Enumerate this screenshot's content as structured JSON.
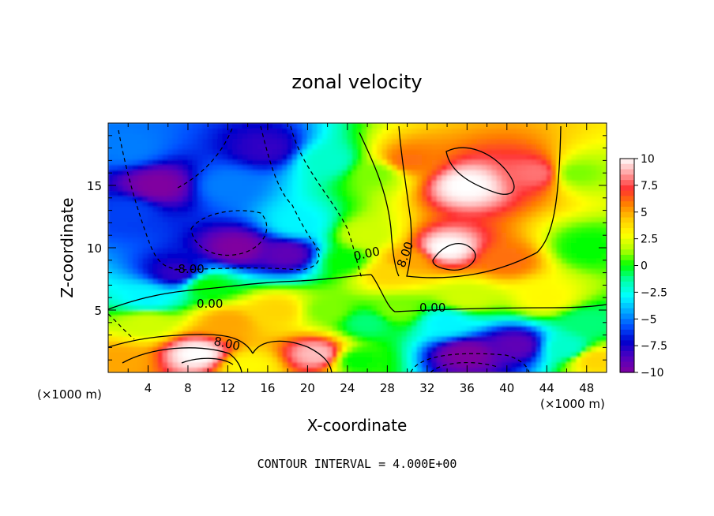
{
  "chart_data": {
    "type": "heatmap",
    "title": "zonal velocity",
    "xlabel": "X-coordinate",
    "ylabel": "Z-coordinate",
    "x_unit": "(×1000 m)",
    "z_unit": "(×1000 m)",
    "footer": "CONTOUR INTERVAL = 4.000E+00",
    "xlim": [
      0,
      50
    ],
    "ylim": [
      0,
      20
    ],
    "x_ticks": [
      "4",
      "8",
      "12",
      "16",
      "20",
      "24",
      "28",
      "32",
      "36",
      "40",
      "44",
      "48"
    ],
    "y_ticks": [
      "5",
      "10",
      "15"
    ],
    "colorbar": {
      "min": -10,
      "max": 10,
      "ticks": [
        "10",
        "7.5",
        "5",
        "2.5",
        "0",
        "−2.5",
        "−5",
        "−7.5",
        "−10"
      ],
      "colors": [
        "#ffffff",
        "#ffa0a0",
        "#ff3030",
        "#ff8000",
        "#ffcc00",
        "#ffff00",
        "#b0ff00",
        "#00ff00",
        "#00ffaa",
        "#00ffff",
        "#00aaff",
        "#0050ff",
        "#0000cc",
        "#5000c0",
        "#8000a0"
      ]
    },
    "contour_labels": [
      "8.00",
      "-8.00",
      "0.00",
      "0.00",
      "0.00",
      "8.00"
    ],
    "features": [
      {
        "x": 5,
        "z": 15,
        "velocity": -10
      },
      {
        "x": 13,
        "z": 10,
        "velocity": -10
      },
      {
        "x": 18,
        "z": 9.5,
        "velocity": -9
      },
      {
        "x": 36,
        "z": 15,
        "velocity": 10
      },
      {
        "x": 34,
        "z": 10,
        "velocity": 10
      },
      {
        "x": 9,
        "z": 1.5,
        "velocity": 10
      },
      {
        "x": 21,
        "z": 1.5,
        "velocity": 9
      },
      {
        "x": 36,
        "z": 1.5,
        "velocity": -10
      },
      {
        "x": 41,
        "z": 2.2,
        "velocity": -9
      },
      {
        "x": 2,
        "z": 13,
        "velocity": -6
      },
      {
        "x": 7,
        "z": 8,
        "velocity": -8
      },
      {
        "x": 4,
        "z": 6,
        "velocity": -3
      },
      {
        "x": 10,
        "z": 7,
        "velocity": 0
      },
      {
        "x": 4,
        "z": 4,
        "velocity": 2
      },
      {
        "x": 12,
        "z": 4,
        "velocity": 5
      },
      {
        "x": 17,
        "z": 5,
        "velocity": 4
      },
      {
        "x": 22,
        "z": 5,
        "velocity": 1
      },
      {
        "x": 26,
        "z": 4,
        "velocity": -1
      },
      {
        "x": 29,
        "z": 5,
        "velocity": 1
      },
      {
        "x": 24,
        "z": 9,
        "velocity": 0
      },
      {
        "x": 26,
        "z": 11,
        "velocity": 2
      },
      {
        "x": 27,
        "z": 16,
        "velocity": 1
      },
      {
        "x": 22,
        "z": 17,
        "velocity": -2
      },
      {
        "x": 19,
        "z": 12,
        "velocity": -3
      },
      {
        "x": 30,
        "z": 17,
        "velocity": 6
      },
      {
        "x": 30,
        "z": 9,
        "velocity": 5
      },
      {
        "x": 28,
        "z": 8,
        "velocity": 4
      },
      {
        "x": 43,
        "z": 16,
        "velocity": 8
      },
      {
        "x": 40,
        "z": 9,
        "velocity": 6
      },
      {
        "x": 36,
        "z": 6,
        "velocity": 2
      },
      {
        "x": 44,
        "z": 6,
        "velocity": 3
      },
      {
        "x": 47,
        "z": 16,
        "velocity": 1
      },
      {
        "x": 48,
        "z": 10,
        "velocity": 0
      },
      {
        "x": 48,
        "z": 4,
        "velocity": -1
      },
      {
        "x": 46,
        "z": 2,
        "velocity": -2
      },
      {
        "x": 49,
        "z": 1,
        "velocity": 4
      },
      {
        "x": 1,
        "z": 1,
        "velocity": 5
      },
      {
        "x": 14,
        "z": 0.5,
        "velocity": 3
      },
      {
        "x": 25,
        "z": 1,
        "velocity": 0
      },
      {
        "x": 34,
        "z": 4,
        "velocity": -3
      },
      {
        "x": 16,
        "z": 18,
        "velocity": -8
      },
      {
        "x": 12,
        "z": 15,
        "velocity": -5
      },
      {
        "x": 2,
        "z": 18,
        "velocity": -5
      }
    ]
  }
}
